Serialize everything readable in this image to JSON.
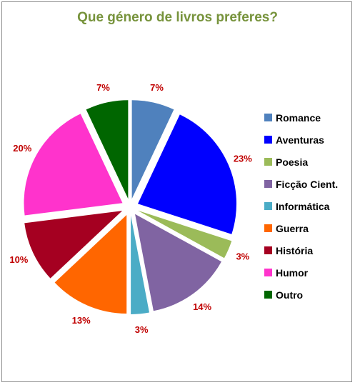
{
  "chart_data": {
    "type": "pie",
    "title": "Que género de livros preferes?",
    "legend_position": "right",
    "slices": [
      {
        "label": "Romance",
        "value": 7,
        "value_label": "7%",
        "color": "#4f81bd"
      },
      {
        "label": "Aventuras",
        "value": 23,
        "value_label": "23%",
        "color": "#0000ff"
      },
      {
        "label": "Poesia",
        "value": 3,
        "value_label": "3%",
        "color": "#9bbb59"
      },
      {
        "label": "Ficção Cient.",
        "value": 14,
        "value_label": "14%",
        "color": "#8064a2"
      },
      {
        "label": "Informática",
        "value": 3,
        "value_label": "3%",
        "color": "#4bacc6"
      },
      {
        "label": "Guerra",
        "value": 13,
        "value_label": "13%",
        "color": "#ff6600"
      },
      {
        "label": "História",
        "value": 10,
        "value_label": "10%",
        "color": "#a50021"
      },
      {
        "label": "Humor",
        "value": 20,
        "value_label": "20%",
        "color": "#ff33cc"
      },
      {
        "label": "Outro",
        "value": 7,
        "value_label": "7%",
        "color": "#006600"
      }
    ]
  }
}
